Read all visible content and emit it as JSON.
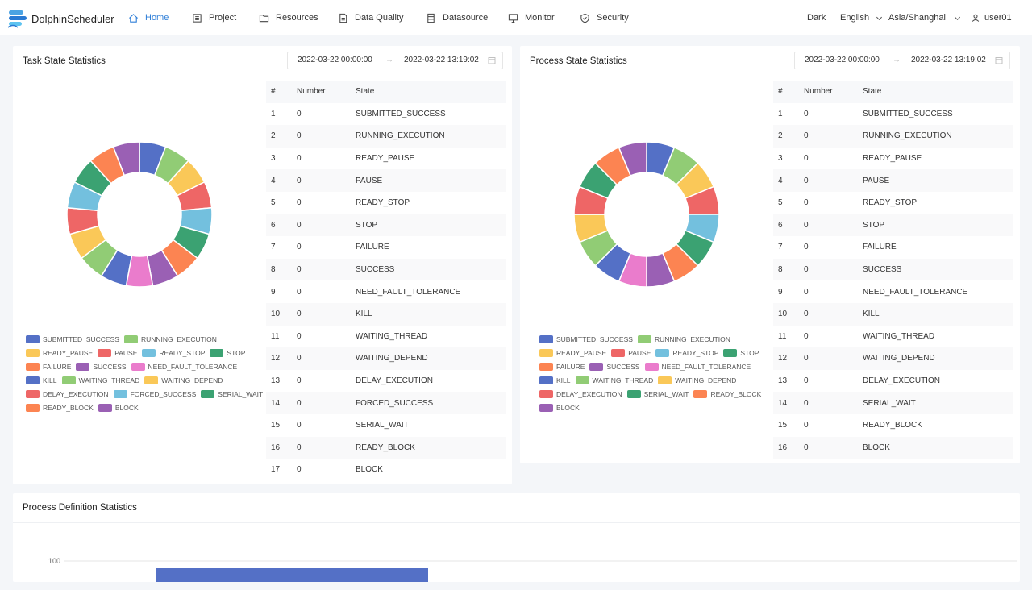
{
  "app": {
    "logo_text": "DolphinScheduler"
  },
  "nav": {
    "items": [
      {
        "label": "Home",
        "icon": "home-icon"
      },
      {
        "label": "Project",
        "icon": "project-icon"
      },
      {
        "label": "Resources",
        "icon": "folder-icon"
      },
      {
        "label": "Data Quality",
        "icon": "document-icon"
      },
      {
        "label": "Datasource",
        "icon": "database-icon"
      },
      {
        "label": "Monitor",
        "icon": "monitor-icon"
      },
      {
        "label": "Security",
        "icon": "shield-icon"
      }
    ],
    "theme": "Dark",
    "language": "English",
    "timezone": "Asia/Shanghai",
    "user": "user01"
  },
  "task_card": {
    "title": "Task State Statistics",
    "date_start": "2022-03-22 00:00:00",
    "date_end": "2022-03-22 13:19:02",
    "table_headers": [
      "#",
      "Number",
      "State"
    ]
  },
  "process_card": {
    "title": "Process State Statistics",
    "date_start": "2022-03-22 00:00:00",
    "date_end": "2022-03-22 13:19:02",
    "table_headers": [
      "#",
      "Number",
      "State"
    ]
  },
  "definition_card": {
    "title": "Process Definition Statistics",
    "axis_label": "100"
  },
  "colors": {
    "SUBMITTED_SUCCESS": "#5470c6",
    "RUNNING_EXECUTION": "#91cc75",
    "READY_PAUSE": "#fac858",
    "PAUSE": "#ee6666",
    "READY_STOP": "#73c0de",
    "STOP": "#3ba272",
    "FAILURE": "#fc8452",
    "SUCCESS": "#9a60b4",
    "NEED_FAULT_TOLERANCE": "#ea7ccc",
    "KILL": "#5470c6",
    "WAITING_THREAD": "#91cc75",
    "WAITING_DEPEND": "#fac858",
    "DELAY_EXECUTION": "#ee6666",
    "FORCED_SUCCESS": "#73c0de",
    "SERIAL_WAIT": "#3ba272",
    "READY_BLOCK": "#fc8452",
    "BLOCK": "#9a60b4"
  },
  "chart_data": [
    {
      "type": "pie",
      "categories": [
        "SUBMITTED_SUCCESS",
        "RUNNING_EXECUTION",
        "READY_PAUSE",
        "PAUSE",
        "READY_STOP",
        "STOP",
        "FAILURE",
        "SUCCESS",
        "NEED_FAULT_TOLERANCE",
        "KILL",
        "WAITING_THREAD",
        "WAITING_DEPEND",
        "DELAY_EXECUTION",
        "FORCED_SUCCESS",
        "SERIAL_WAIT",
        "READY_BLOCK",
        "BLOCK"
      ],
      "values": [
        0,
        0,
        0,
        0,
        0,
        0,
        0,
        0,
        0,
        0,
        0,
        0,
        0,
        0,
        0,
        0,
        0
      ],
      "title": "Task State Statistics",
      "legend": "bottom"
    },
    {
      "type": "pie",
      "categories": [
        "SUBMITTED_SUCCESS",
        "RUNNING_EXECUTION",
        "READY_PAUSE",
        "PAUSE",
        "READY_STOP",
        "STOP",
        "FAILURE",
        "SUCCESS",
        "NEED_FAULT_TOLERANCE",
        "KILL",
        "WAITING_THREAD",
        "WAITING_DEPEND",
        "DELAY_EXECUTION",
        "SERIAL_WAIT",
        "READY_BLOCK",
        "BLOCK"
      ],
      "values": [
        0,
        0,
        0,
        0,
        0,
        0,
        0,
        0,
        0,
        0,
        0,
        0,
        0,
        0,
        0,
        0
      ],
      "title": "Process State Statistics",
      "legend": "bottom"
    },
    {
      "type": "bar",
      "title": "Process Definition Statistics",
      "categories": [
        ""
      ],
      "values": [
        100
      ],
      "ylabel": "",
      "yticks": [
        100
      ]
    }
  ]
}
